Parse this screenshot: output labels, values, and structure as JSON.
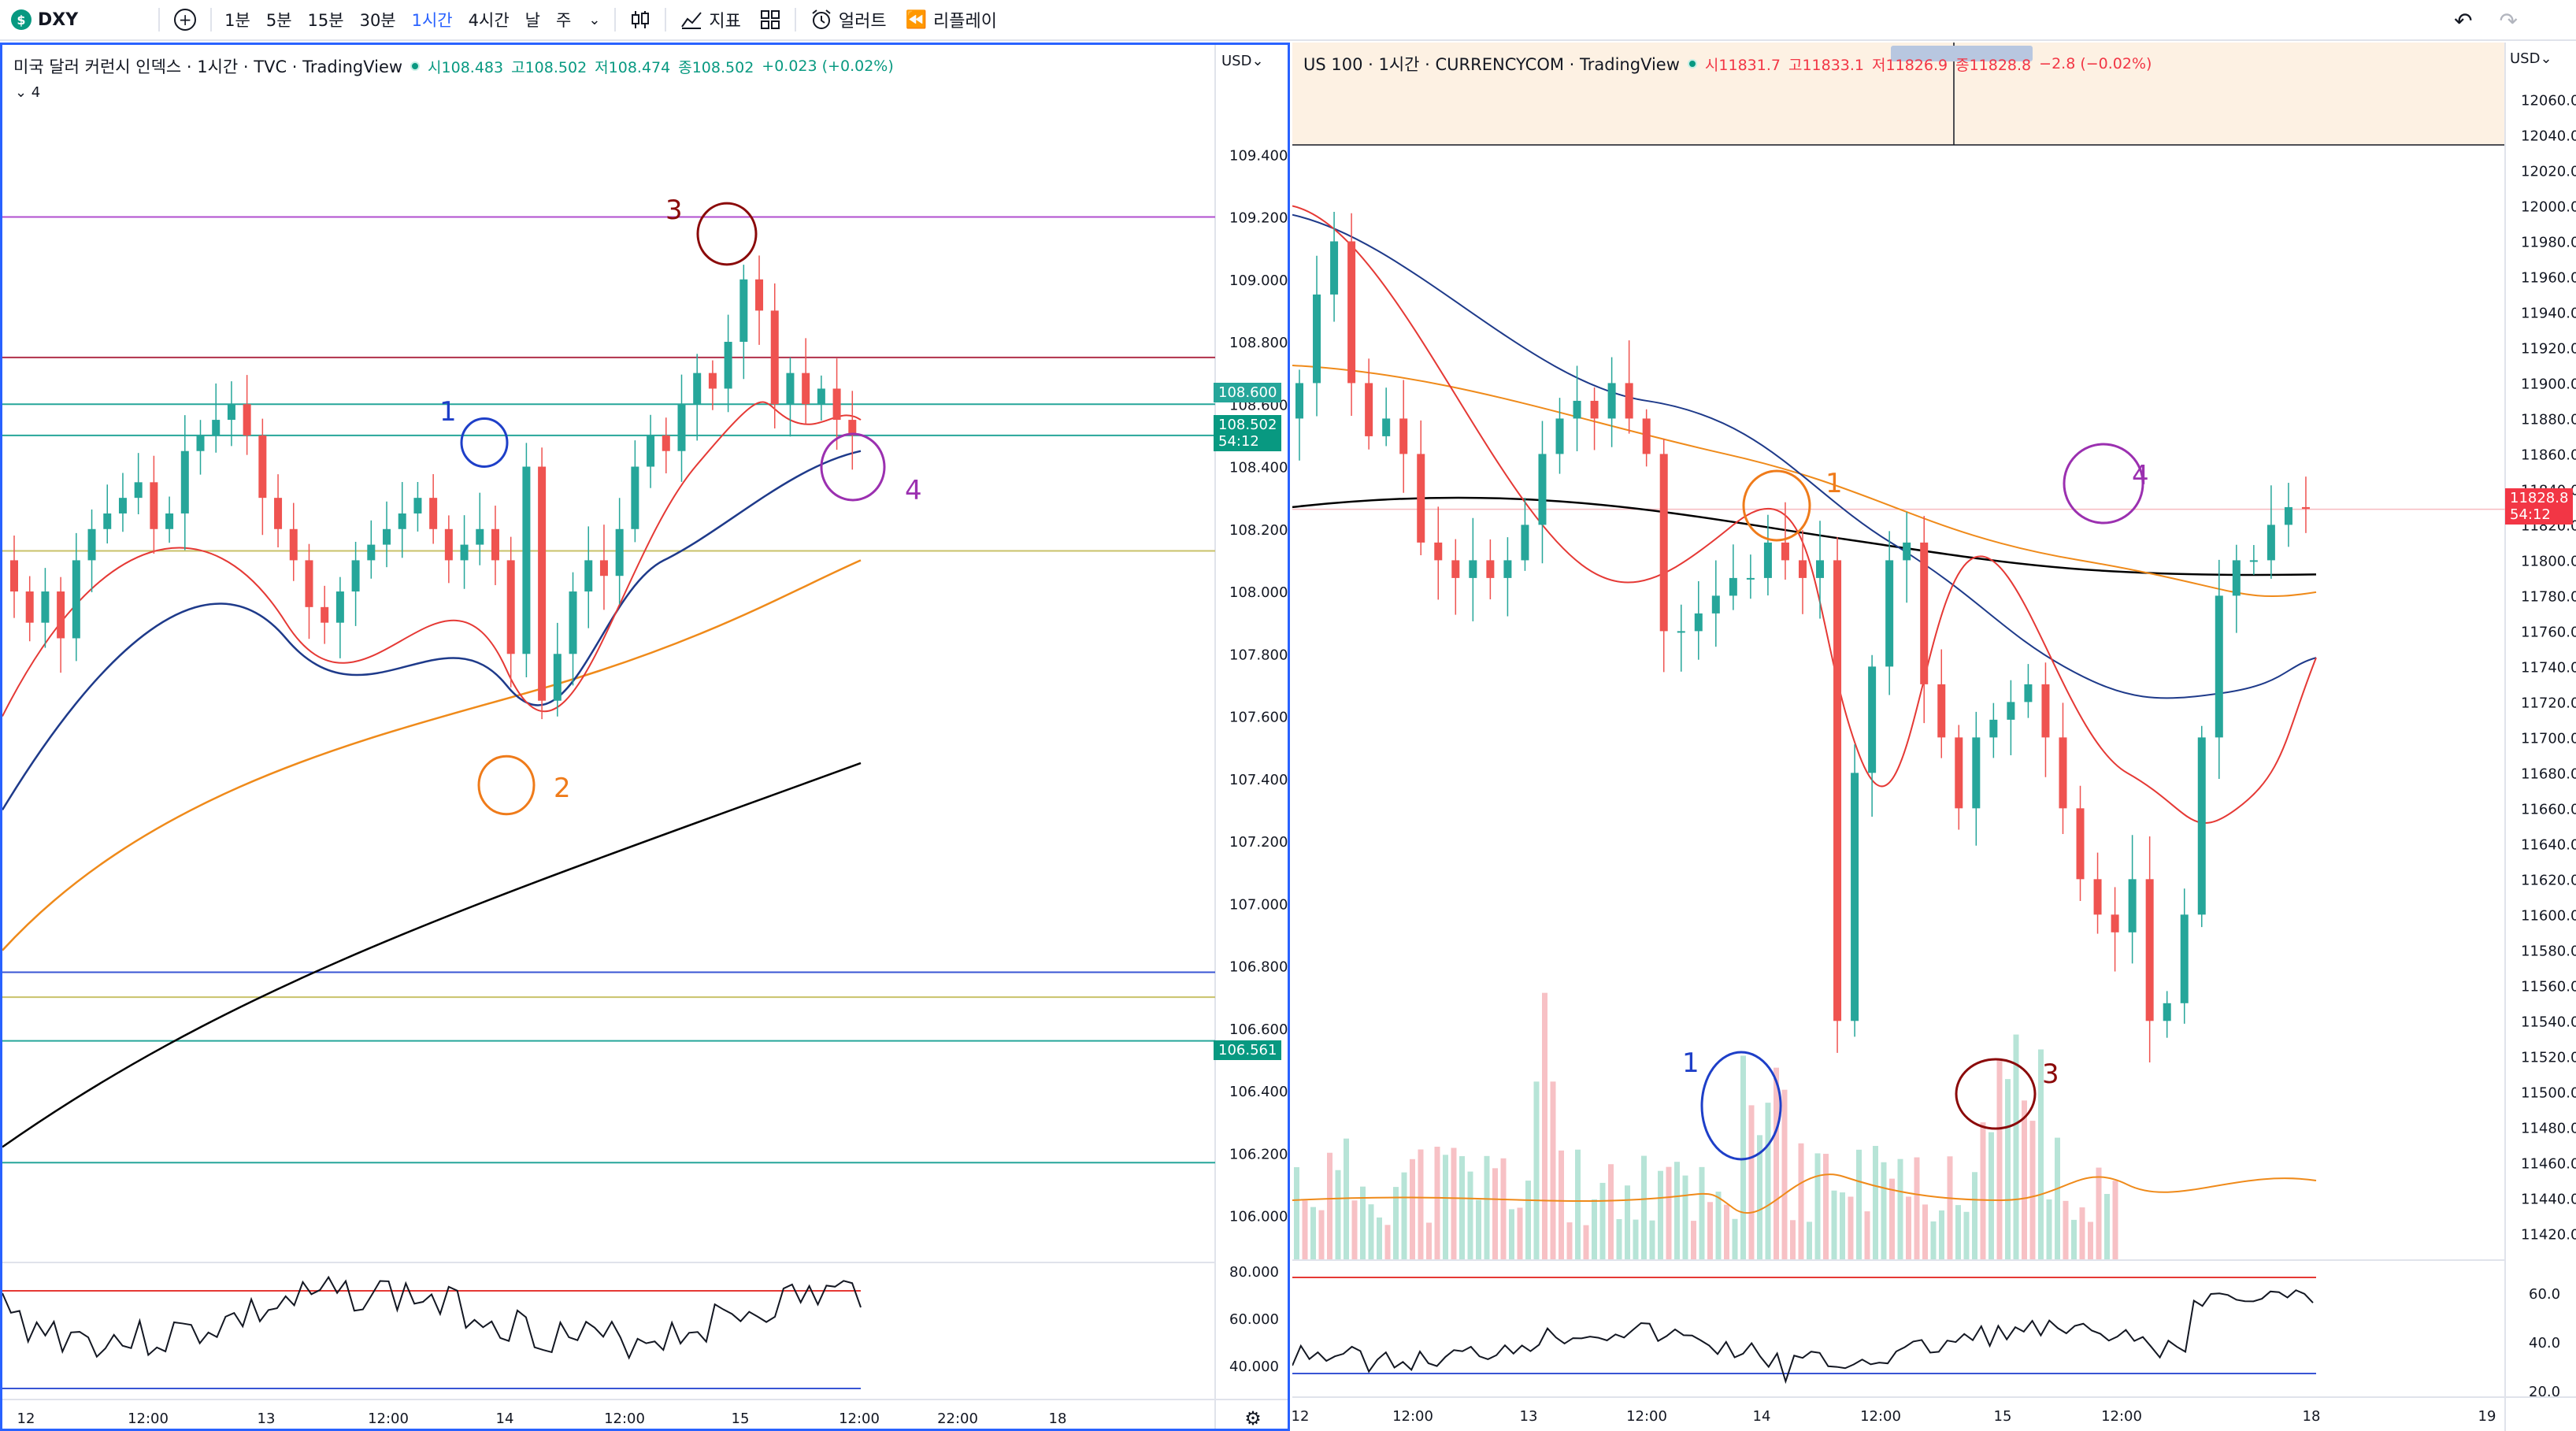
{
  "toolbar": {
    "symbol": "DXY",
    "symbol_logo": "$",
    "timeframes": [
      "1분",
      "5분",
      "15분",
      "30분",
      "1시간",
      "4시간",
      "날",
      "주"
    ],
    "active_timeframe": "1시간",
    "indicators_label": "지표",
    "alerts_label": "얼러트",
    "replay_label": "리플레이",
    "icons": [
      "add-symbol-icon",
      "chevron-down-icon",
      "candles-icon",
      "indicators-icon",
      "layouts-icon",
      "alert-icon",
      "replay-icon",
      "undo-icon",
      "redo-icon"
    ]
  },
  "left": {
    "title": "미국 달러 커런시 인덱스 · 1시간 · TVC · TradingView",
    "ohlc": {
      "o": "시108.483",
      "h": "고108.502",
      "l": "저108.474",
      "c": "종108.502",
      "chg": "+0.023 (+0.02%)"
    },
    "sub_legend": "⌄ 4",
    "currency": "USD⌄",
    "price_tag_1": "108.600",
    "price_tag_2a": "108.502",
    "price_tag_2b": "54:12",
    "price_tag_3": "106.561",
    "circle_labels": [
      "1",
      "2",
      "3",
      "4"
    ],
    "rsi_levels": [
      "80.000",
      "60.000",
      "40.000"
    ]
  },
  "right": {
    "title": "US 100 · 1시간 · CURRENCYCOM · TradingView",
    "ohlc": {
      "o": "시11831.7",
      "h": "고11833.1",
      "l": "저11826.9",
      "c": "종11828.8",
      "chg": "−2.8 (−0.02%)"
    },
    "currency": "USD⌄",
    "price_tag_a": "11828.8",
    "price_tag_b": "54:12",
    "circle_labels": [
      "1",
      "1",
      "3",
      "4"
    ],
    "rsi_levels": [
      "60.0",
      "40.0",
      "20.0"
    ]
  },
  "chart_data": [
    {
      "type": "candlestick",
      "title": "미국 달러 커런시 인덱스 · 1시간 · TVC",
      "y_ticks": [
        109.4,
        109.2,
        109.0,
        108.8,
        108.6,
        108.4,
        108.2,
        108.0,
        107.8,
        107.6,
        107.4,
        107.2,
        107.0,
        106.8,
        106.6,
        106.4,
        106.2,
        106.0
      ],
      "ylim": [
        105.85,
        109.6
      ],
      "x_ticks": [
        "12",
        "12:00",
        "13",
        "12:00",
        "14",
        "12:00",
        "15",
        "12:00",
        "22:00",
        "18"
      ],
      "close": [
        108.0,
        107.9,
        108.0,
        107.85,
        108.1,
        108.2,
        108.25,
        108.3,
        108.35,
        108.2,
        108.25,
        108.45,
        108.5,
        108.55,
        108.6,
        108.5,
        108.3,
        108.2,
        108.1,
        107.95,
        107.9,
        108.0,
        108.1,
        108.15,
        108.2,
        108.25,
        108.3,
        108.2,
        108.1,
        108.15,
        108.2,
        108.1,
        107.8,
        108.4,
        107.65,
        107.8,
        108.0,
        108.1,
        108.05,
        108.2,
        108.4,
        108.5,
        108.45,
        108.6,
        108.7,
        108.65,
        108.8,
        109.0,
        108.9,
        108.6,
        108.7,
        108.6,
        108.65,
        108.55,
        108.5
      ],
      "overlays": {
        "ma_red": "short MA",
        "ma_blue": "medium MA",
        "ma_orange": "long MA",
        "ma_black": "longest MA"
      },
      "horizontal_levels": [
        109.2,
        108.75,
        108.6,
        108.5,
        108.13,
        106.78,
        106.7,
        106.56,
        106.17
      ],
      "annotations": [
        {
          "label": "1",
          "price": 108.6,
          "color": "#1e3fc8"
        },
        {
          "label": "2",
          "price": 107.55,
          "color": "#ef7b1a"
        },
        {
          "label": "3",
          "price": 109.25,
          "color": "#8b0a0a"
        },
        {
          "label": "4",
          "price": 108.5,
          "color": "#9b30b0"
        }
      ],
      "rsi_bounds": [
        70,
        30
      ]
    },
    {
      "type": "candlestick",
      "title": "US 100 · 1시간 · CURRENCYCOM",
      "y_ticks": [
        12060,
        12040,
        12020,
        12000,
        11980,
        11960,
        11940,
        11920,
        11900,
        11880,
        11860,
        11840,
        11820,
        11800,
        11780,
        11760,
        11740,
        11720,
        11700,
        11680,
        11660,
        11640,
        11620,
        11600,
        11580,
        11560,
        11540,
        11520,
        11500,
        11480,
        11460,
        11440,
        11420
      ],
      "ylim": [
        11405,
        12070
      ],
      "x_ticks": [
        "12",
        "12:00",
        "13",
        "12:00",
        "14",
        "12:00",
        "15",
        "12:00",
        "18",
        "19"
      ],
      "annotations": [
        {
          "label": "1",
          "price": 11490,
          "color": "#1e3fc8"
        },
        {
          "label": "1",
          "price": 11820,
          "color": "#ef7b1a"
        },
        {
          "label": "3",
          "price": 11500,
          "color": "#8b0a0a"
        },
        {
          "label": "4",
          "price": 11835,
          "color": "#9b30b0"
        }
      ],
      "rsi_bounds": [
        75,
        32
      ]
    }
  ]
}
